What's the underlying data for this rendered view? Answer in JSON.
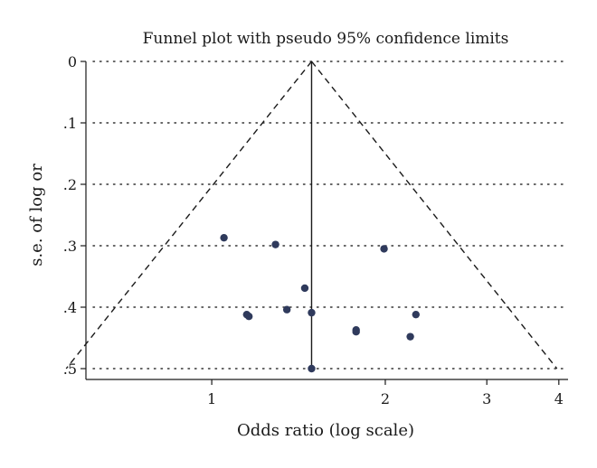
{
  "chart_data": {
    "type": "scatter",
    "title": "Funnel plot with pseudo 95% confidence limits",
    "xlabel": "Odds ratio (log scale)",
    "ylabel": "s.e. of log or",
    "x_scale": "log",
    "y_reversed": true,
    "xlim": [
      0.605,
      4.15
    ],
    "ylim": [
      0,
      0.5
    ],
    "x_ticks": [
      {
        "value": 1,
        "label": "1"
      },
      {
        "value": 2,
        "label": "2"
      },
      {
        "value": 3,
        "label": "3"
      },
      {
        "value": 4,
        "label": "4"
      }
    ],
    "y_ticks": [
      {
        "value": 0,
        "label": "0"
      },
      {
        "value": 0.1,
        "label": ".1"
      },
      {
        "value": 0.2,
        "label": ".2"
      },
      {
        "value": 0.3,
        "label": ".3"
      },
      {
        "value": 0.4,
        "label": ".4"
      },
      {
        "value": 0.5,
        "label": ".5"
      }
    ],
    "grid": "horizontal dotted",
    "pooled_or": 1.49,
    "points": [
      {
        "or": 1.05,
        "se": 0.287
      },
      {
        "or": 1.29,
        "se": 0.298
      },
      {
        "or": 1.99,
        "se": 0.305
      },
      {
        "or": 1.45,
        "se": 0.369
      },
      {
        "or": 1.35,
        "se": 0.404
      },
      {
        "or": 1.15,
        "se": 0.412
      },
      {
        "or": 1.16,
        "se": 0.415
      },
      {
        "or": 1.49,
        "se": 0.409
      },
      {
        "or": 1.78,
        "se": 0.437
      },
      {
        "or": 1.78,
        "se": 0.44
      },
      {
        "or": 2.26,
        "se": 0.412
      },
      {
        "or": 2.21,
        "se": 0.448
      },
      {
        "or": 1.49,
        "se": 0.5
      }
    ],
    "colors": {
      "point": "#2f3a5c",
      "line": "#1a1a1a",
      "grid": "#333333"
    }
  }
}
